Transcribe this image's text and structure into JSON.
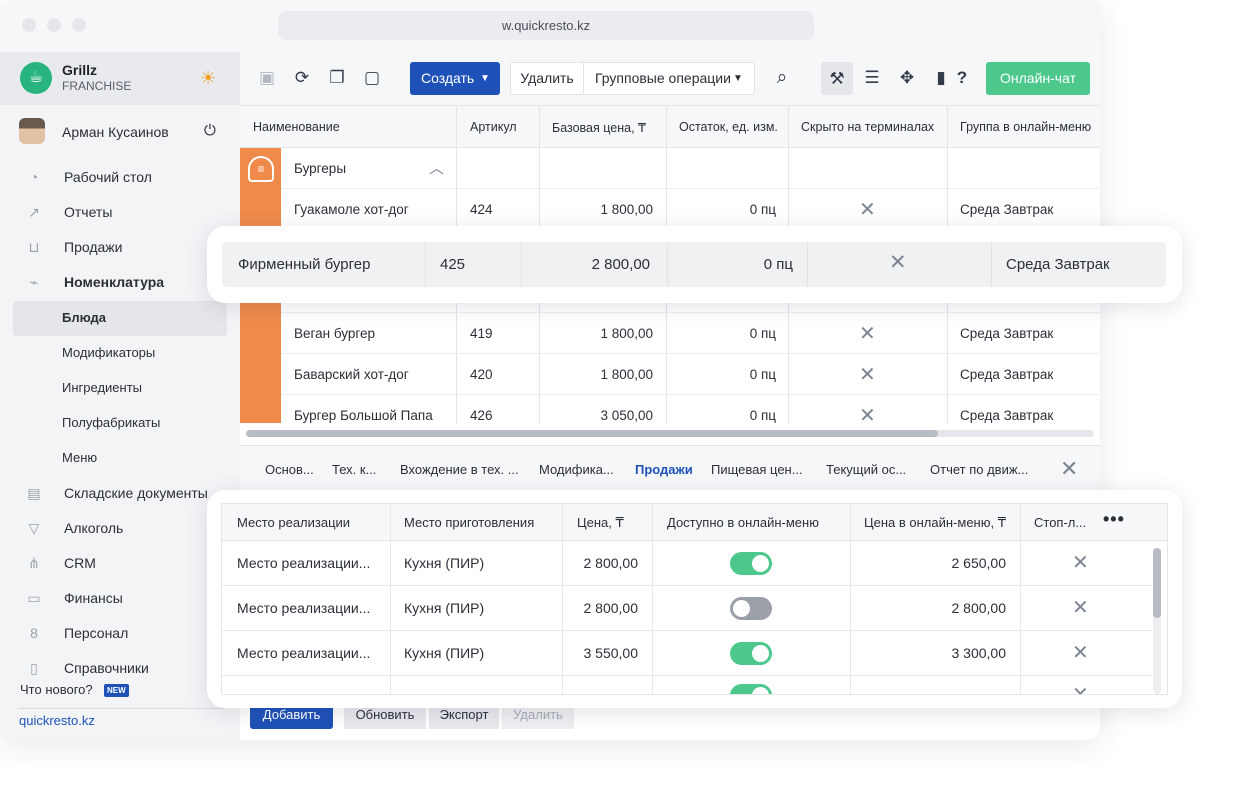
{
  "browser": {
    "url": "w.quickresto.kz"
  },
  "brand": {
    "name": "Grillz",
    "subtitle": "FRANCHISE"
  },
  "user": {
    "name": "Арман Кусаинов"
  },
  "sidebar": {
    "items": [
      {
        "label": "Рабочий стол",
        "icon": "speedometer-icon"
      },
      {
        "label": "Отчеты",
        "icon": "chart-icon"
      },
      {
        "label": "Продажи",
        "icon": "basket-icon"
      },
      {
        "label": "Номенклатура",
        "icon": "tag-icon"
      },
      {
        "label": "Блюда"
      },
      {
        "label": "Модификаторы"
      },
      {
        "label": "Ингредиенты"
      },
      {
        "label": "Полуфабрикаты"
      },
      {
        "label": "Меню"
      },
      {
        "label": "Складские документы",
        "icon": "archive-icon"
      },
      {
        "label": "Алкоголь",
        "icon": "glass-icon"
      },
      {
        "label": "CRM",
        "icon": "hierarchy-icon"
      },
      {
        "label": "Финансы",
        "icon": "wallet-icon"
      },
      {
        "label": "Персонал",
        "icon": "people-icon"
      },
      {
        "label": "Справочники",
        "icon": "book-icon"
      }
    ],
    "whats_new": "Что нового?",
    "new_badge": "NEW",
    "site_link": "quickresto.kz"
  },
  "toolbar": {
    "create_label": "Создать",
    "delete_label": "Удалить",
    "group_ops_label": "Групповые операции",
    "chat_label": "Онлайн-чат"
  },
  "table": {
    "columns": [
      "Наименование",
      "Артикул",
      "Базовая цена, ₸",
      "Остаток, ед. изм.",
      "Скрыто на терминалах",
      "Группа в онлайн-меню"
    ],
    "group_label": "Бургеры",
    "rows": [
      {
        "name": "Гуакамоле хот-дог",
        "sku": "424",
        "price": "1 800,00",
        "stock": "0 пц",
        "group": "Среда Завтрак"
      },
      {
        "name": "Веган бургер",
        "sku": "419",
        "price": "1 800,00",
        "stock": "0 пц",
        "group": "Среда Завтрак"
      },
      {
        "name": "Баварский хот-дог",
        "sku": "420",
        "price": "1 800,00",
        "stock": "0 пц",
        "group": "Среда Завтрак"
      },
      {
        "name": "Бургер Большой Папа",
        "sku": "426",
        "price": "3 050,00",
        "stock": "0 пц",
        "group": "Среда Завтрак"
      }
    ]
  },
  "highlight": {
    "name": "Фирменный бургер",
    "sku": "425",
    "price": "2 800,00",
    "stock": "0 пц",
    "group": "Среда Завтрак"
  },
  "detail_tabs": [
    "Основ...",
    "Тех. к...",
    "Вхождение в тех. ...",
    "Модифика...",
    "Продажи",
    "Пищевая цен...",
    "Текущий ос...",
    "Отчет по движ..."
  ],
  "active_tab": "Продажи",
  "sales": {
    "columns": [
      "Место реализации",
      "Место приготовления",
      "Цена, ₸",
      "Доступно в онлайн-меню",
      "Цена в онлайн-меню, ₸",
      "Стоп-л..."
    ],
    "rows": [
      {
        "place": "Место реализации...",
        "kitchen": "Кухня (ПИР)",
        "price": "2 800,00",
        "online": true,
        "online_price": "2 650,00"
      },
      {
        "place": "Место реализации...",
        "kitchen": "Кухня (ПИР)",
        "price": "2 800,00",
        "online": false,
        "online_price": "2 800,00"
      },
      {
        "place": "Место реализации...",
        "kitchen": "Кухня (ПИР)",
        "price": "3 550,00",
        "online": true,
        "online_price": "3 300,00"
      }
    ]
  },
  "bottom_buttons": {
    "add": "Добавить",
    "refresh": "Обновить",
    "export": "Экспорт",
    "delete": "Удалить"
  },
  "colors": {
    "primary": "#1f52b8",
    "accent_green": "#4cc88d",
    "group_orange": "#ef8a4a"
  }
}
